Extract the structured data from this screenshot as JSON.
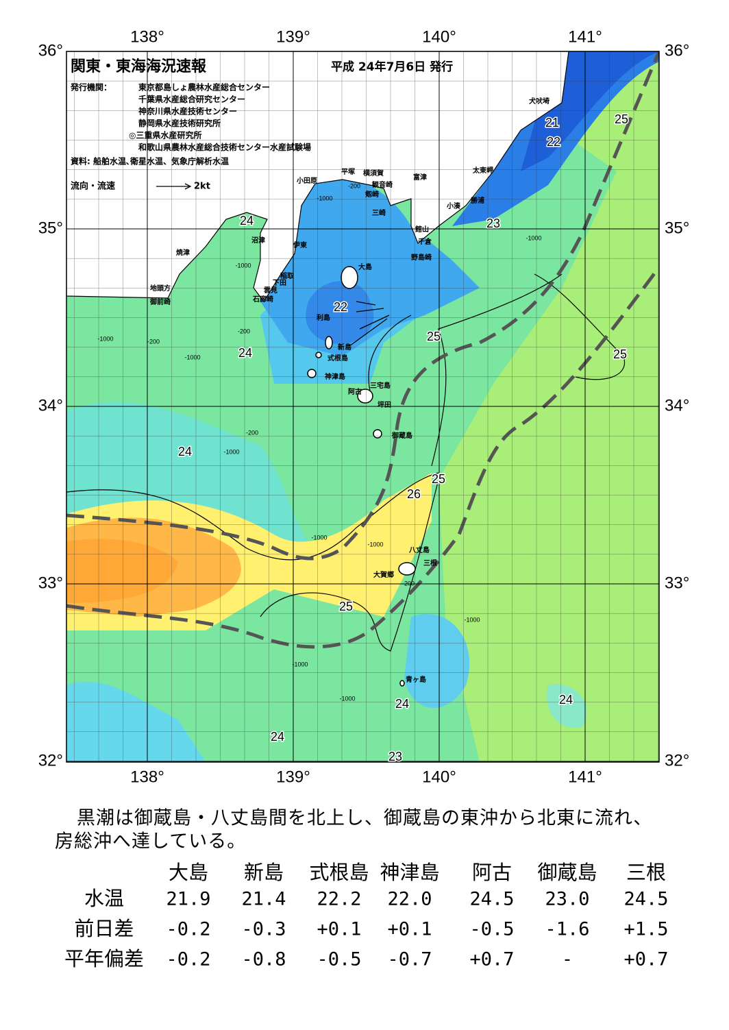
{
  "header": {
    "title": "関東・東海海況速報",
    "date": "平成 24年7月6日 発行",
    "agencies_label": "発行機関：",
    "agencies": [
      "東京都島しょ農林水産総合センター",
      "千葉県水産総合研究センター",
      "神奈川県水産技術センター",
      "静岡県水産技術研究所",
      "◎三重県水産研究所",
      "和歌山県農林水産総合技術センター水産試験場"
    ],
    "sources": "資料: 船舶水温､衛星水温、気象庁解析水温",
    "current_label": "流向・流速",
    "current_scale": "2kt"
  },
  "map": {
    "lon_ticks": [
      {
        "value": 138,
        "label": "138°"
      },
      {
        "value": 139,
        "label": "139°"
      },
      {
        "value": 140,
        "label": "140°"
      },
      {
        "value": 141,
        "label": "141°"
      }
    ],
    "lat_ticks": [
      {
        "value": 36,
        "label": "36°"
      },
      {
        "value": 35,
        "label": "35°"
      },
      {
        "value": 34,
        "label": "34°"
      },
      {
        "value": 33,
        "label": "33°"
      },
      {
        "value": 32,
        "label": "32°"
      }
    ],
    "temperature_labels": [
      21,
      22,
      25,
      23,
      24,
      22,
      25,
      24,
      25,
      24,
      25,
      26,
      25,
      24,
      24,
      24,
      23
    ],
    "depth_labels": [
      -1000,
      -200,
      -1000,
      -1000,
      -200,
      -1000,
      -200,
      -1000,
      -200,
      -1000,
      -1000,
      -1000,
      -200,
      -1000,
      -1000,
      -1000
    ],
    "places": [
      "犬吠埼",
      "太東岬",
      "勝浦",
      "小湊",
      "富津",
      "横須賀",
      "観音崎",
      "剱崎",
      "三崎",
      "平塚",
      "小田原",
      "館山",
      "千倉",
      "野島崎",
      "大島",
      "沼津",
      "伊東",
      "焼津",
      "稲取",
      "下田",
      "雲見",
      "石廊崎",
      "地頭方",
      "御前崎",
      "利島",
      "新島",
      "式根島",
      "神津島",
      "三宅島",
      "阿古",
      "坪田",
      "御蔵島",
      "八丈島",
      "三根",
      "大賀郷",
      "青ヶ島"
    ]
  },
  "summary": [
    "黒潮は御蔵島・八丈島間を北上し、御蔵島の東沖から北東に流れ、",
    "房総沖へ達している。"
  ],
  "table": {
    "columns": [
      "大島",
      "新島",
      "式根島",
      "神津島",
      "阿古",
      "御蔵島",
      "三根"
    ],
    "rows": [
      {
        "label": "水温",
        "values": [
          "21.9",
          "21.4",
          "22.2",
          "22.0",
          "24.5",
          "23.0",
          "24.5"
        ]
      },
      {
        "label": "前日差",
        "values": [
          "-0.2",
          "-0.3",
          "+0.1",
          "+0.1",
          "-0.5",
          "-1.6",
          "+1.5"
        ]
      },
      {
        "label": "平年偏差",
        "values": [
          "-0.2",
          "-0.8",
          "-0.5",
          "-0.7",
          "+0.7",
          "-",
          "+0.7"
        ]
      }
    ]
  }
}
